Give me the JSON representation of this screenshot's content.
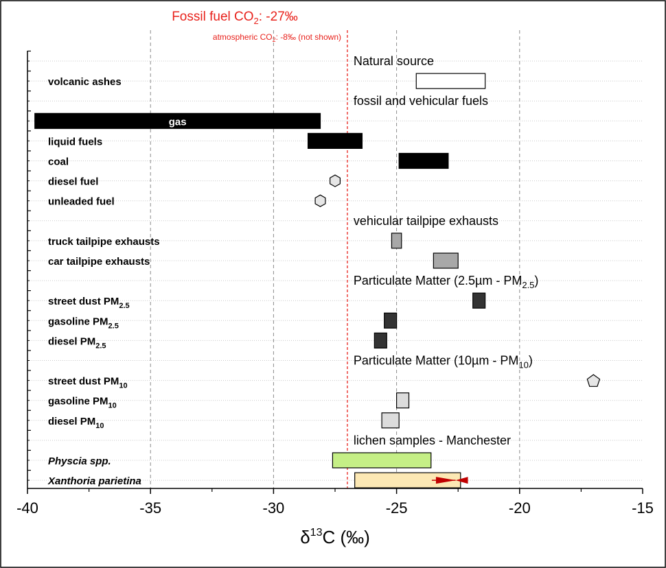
{
  "chart_data": {
    "type": "range-bar",
    "xlabel": "δ13C (‰)",
    "xlabel_parts": {
      "prefix": "δ",
      "sup": "13",
      "suffix": "C (‰)"
    },
    "xlim": [
      -40,
      -15
    ],
    "xticks": [
      -40,
      -35,
      -30,
      -25,
      -20,
      -15
    ],
    "xtick_labels": [
      "-40",
      "-35",
      "-30",
      "-25",
      "-20",
      "-15"
    ],
    "grid": "vertical dashed at major ticks; horizontal dotted at each row",
    "reference_line": {
      "x": -27,
      "color": "#e8211b",
      "title": {
        "main": "Fossil fuel CO",
        "sub": "2",
        "tail": ": -27‰"
      },
      "subtitle": {
        "main": "atmospheric CO",
        "sub": "2",
        "tail": ": -8‰ (not shown)"
      }
    },
    "rows": [
      {
        "kind": "group",
        "text": "Natural source"
      },
      {
        "kind": "bar",
        "label": "volcanic ashes",
        "range": [
          -24.2,
          -21.4
        ],
        "fill": "#ffffff"
      },
      {
        "kind": "group",
        "text": "fossil and vehicular fuels"
      },
      {
        "kind": "bar",
        "label": "",
        "inner_label": "gas",
        "range": [
          -39.7,
          -28.1
        ],
        "fill": "#000000"
      },
      {
        "kind": "bar",
        "label": "liquid fuels",
        "range": [
          -28.6,
          -26.4
        ],
        "fill": "#000000"
      },
      {
        "kind": "bar",
        "label": "coal",
        "range": [
          -24.9,
          -22.9
        ],
        "fill": "#000000"
      },
      {
        "kind": "point",
        "label": "diesel fuel",
        "value": -27.5,
        "marker": "hexagon",
        "fill": "#e6e6e6"
      },
      {
        "kind": "point",
        "label": "unleaded fuel",
        "value": -28.1,
        "marker": "hexagon",
        "fill": "#e6e6e6"
      },
      {
        "kind": "group",
        "text": "vehicular tailpipe exhausts"
      },
      {
        "kind": "bar",
        "label": "truck tailpipe exhausts",
        "range": [
          -25.2,
          -24.8
        ],
        "fill": "#a8a8a8"
      },
      {
        "kind": "bar",
        "label": "car tailpipe exhausts",
        "range": [
          -23.5,
          -22.5
        ],
        "fill": "#a8a8a8"
      },
      {
        "kind": "group",
        "text": "Particulate Matter (2.5µm - PM",
        "text_sub": "2.5",
        "text_tail": ")"
      },
      {
        "kind": "bar",
        "label": "street dust PM",
        "label_sub": "2.5",
        "range": [
          -21.9,
          -21.4
        ],
        "fill": "#333333"
      },
      {
        "kind": "bar",
        "label": "gasoline PM",
        "label_sub": "2.5",
        "range": [
          -25.5,
          -25.0
        ],
        "fill": "#333333"
      },
      {
        "kind": "bar",
        "label": "diesel PM",
        "label_sub": "2.5",
        "range": [
          -25.9,
          -25.4
        ],
        "fill": "#333333"
      },
      {
        "kind": "group",
        "text": "Particulate Matter (10µm - PM",
        "text_sub": "10",
        "text_tail": ")"
      },
      {
        "kind": "point",
        "label": "street dust PM",
        "label_sub": "10",
        "value": -17.0,
        "marker": "pentagon",
        "fill": "#e6e6e6"
      },
      {
        "kind": "bar",
        "label": "gasoline PM",
        "label_sub": "10",
        "range": [
          -25.0,
          -24.5
        ],
        "fill": "#dcdcdc"
      },
      {
        "kind": "bar",
        "label": "diesel PM",
        "label_sub": "10",
        "range": [
          -25.6,
          -24.9
        ],
        "fill": "#dcdcdc"
      },
      {
        "kind": "group",
        "text": "lichen samples - Manchester"
      },
      {
        "kind": "bar",
        "label": "Physcia spp.",
        "italic": true,
        "range": [
          -27.6,
          -23.6
        ],
        "fill": "#c5ef86"
      },
      {
        "kind": "bar",
        "label": "Xanthoria parietina",
        "italic": true,
        "range": [
          -26.7,
          -22.4
        ],
        "fill": "#fce8b4",
        "arrows": {
          "color": "#c00000",
          "left_tip": -22.6,
          "right_tip": -22.6,
          "from_left": -23.4,
          "from_right": -22.1
        }
      }
    ]
  }
}
